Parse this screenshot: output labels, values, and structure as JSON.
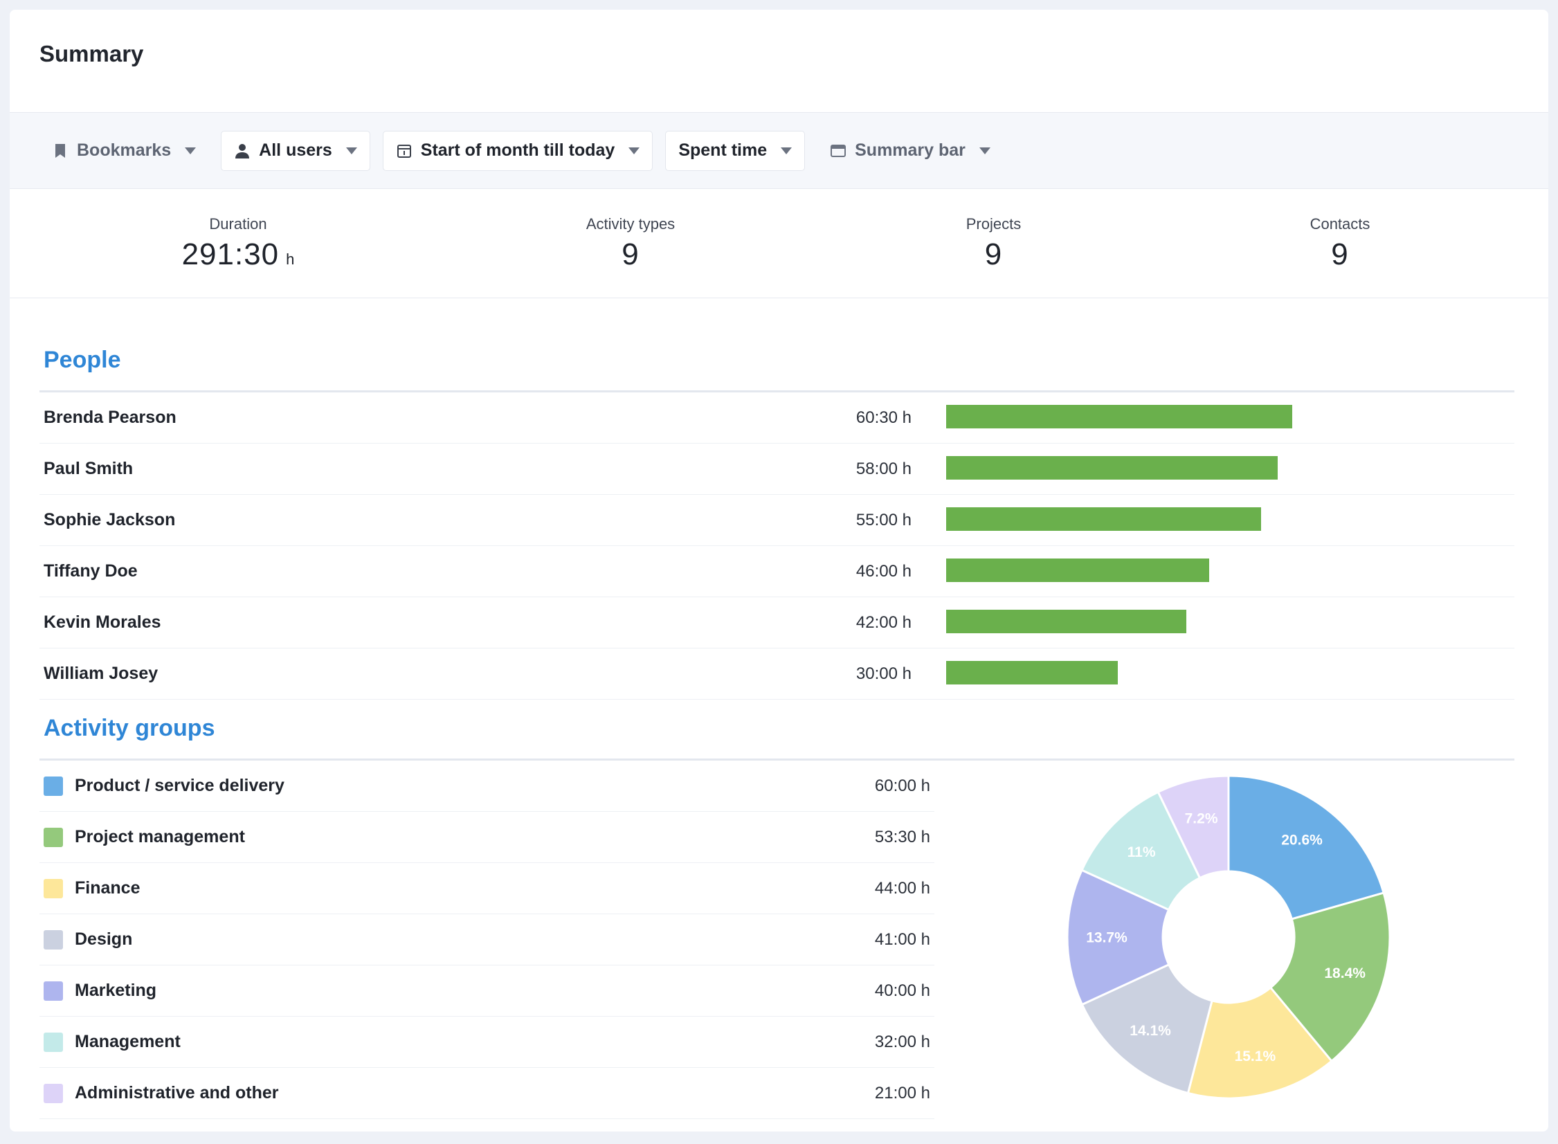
{
  "header": {
    "title": "Summary"
  },
  "toolbar": {
    "bookmarks": "Bookmarks",
    "users": "All users",
    "date_range": "Start of month till today",
    "metric": "Spent time",
    "view": "Summary bar"
  },
  "stats": [
    {
      "label": "Duration",
      "value": "291:30",
      "unit": "h"
    },
    {
      "label": "Activity types",
      "value": "9",
      "unit": ""
    },
    {
      "label": "Projects",
      "value": "9",
      "unit": ""
    },
    {
      "label": "Contacts",
      "value": "9",
      "unit": ""
    }
  ],
  "people": {
    "title": "People",
    "rows": [
      {
        "name": "Brenda Pearson",
        "time": "60:30 h",
        "hours": 60.5
      },
      {
        "name": "Paul Smith",
        "time": "58:00 h",
        "hours": 58
      },
      {
        "name": "Sophie Jackson",
        "time": "55:00 h",
        "hours": 55
      },
      {
        "name": "Tiffany Doe",
        "time": "46:00 h",
        "hours": 46
      },
      {
        "name": "Kevin Morales",
        "time": "42:00 h",
        "hours": 42
      },
      {
        "name": "William Josey",
        "time": "30:00 h",
        "hours": 30
      }
    ]
  },
  "activity_groups": {
    "title": "Activity groups",
    "rows": [
      {
        "name": "Product / service delivery",
        "time": "60:00 h",
        "color": "#6aaee6"
      },
      {
        "name": "Project management",
        "time": "53:30 h",
        "color": "#94c97c"
      },
      {
        "name": "Finance",
        "time": "44:00 h",
        "color": "#fde79a"
      },
      {
        "name": "Design",
        "time": "41:00 h",
        "color": "#cbd1e0"
      },
      {
        "name": "Marketing",
        "time": "40:00 h",
        "color": "#aeb5ee"
      },
      {
        "name": "Management",
        "time": "32:00 h",
        "color": "#c3eae9"
      },
      {
        "name": "Administrative and other",
        "time": "21:00 h",
        "color": "#ddd3f8"
      }
    ]
  },
  "chart_data": {
    "type": "pie",
    "labels": [
      "Product / service delivery",
      "Project management",
      "Finance",
      "Design",
      "Marketing",
      "Management",
      "Administrative and other"
    ],
    "values": [
      20.6,
      18.4,
      15.1,
      14.1,
      13.7,
      11,
      7.2
    ],
    "value_labels": [
      "20.6%",
      "18.4%",
      "15.1%",
      "14.1%",
      "13.7%",
      "11%",
      "7.2%"
    ],
    "colors": [
      "#6aaee6",
      "#94c97c",
      "#fde79a",
      "#cbd1e0",
      "#aeb5ee",
      "#c3eae9",
      "#ddd3f8"
    ],
    "donut": true
  }
}
